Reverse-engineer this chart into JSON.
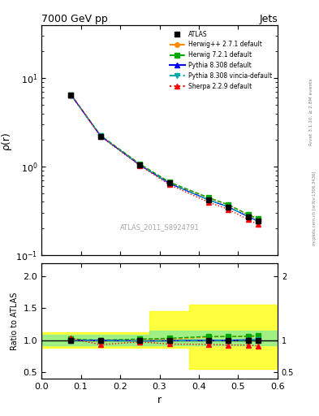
{
  "title": "7000 GeV pp",
  "title_right": "Jets",
  "ylabel_main": "ρ(r)",
  "ylabel_ratio": "Ratio to ATLAS",
  "xlabel": "r",
  "watermark": "ATLAS_2011_S8924791",
  "rivet_label": "Rivet 3.1.10, ≥ 2.8M events",
  "arxiv_label": "mcplots.cern.ch [arXiv:1306.3436]",
  "r_values": [
    0.075,
    0.15,
    0.25,
    0.325,
    0.425,
    0.475,
    0.525,
    0.55
  ],
  "atlas_y": [
    6.5,
    2.2,
    1.05,
    0.65,
    0.42,
    0.35,
    0.27,
    0.24
  ],
  "atlas_yerr": [
    0.1,
    0.05,
    0.03,
    0.02,
    0.02,
    0.015,
    0.012,
    0.01
  ],
  "herwig271_y": [
    6.5,
    2.25,
    1.06,
    0.66,
    0.44,
    0.37,
    0.285,
    0.255
  ],
  "herwig721_y": [
    6.5,
    2.25,
    1.07,
    0.67,
    0.445,
    0.37,
    0.287,
    0.257
  ],
  "pythia8308_y": [
    6.5,
    2.22,
    1.04,
    0.645,
    0.42,
    0.35,
    0.272,
    0.242
  ],
  "pythia_vincia_y": [
    6.5,
    2.22,
    1.04,
    0.645,
    0.42,
    0.35,
    0.272,
    0.242
  ],
  "sherpa229_y": [
    6.5,
    2.2,
    1.03,
    0.625,
    0.395,
    0.328,
    0.252,
    0.222
  ],
  "herwig271_ratio": [
    1.02,
    0.98,
    1.01,
    1.015,
    1.05,
    1.06,
    1.055,
    1.06
  ],
  "herwig721_ratio": [
    1.02,
    1.0,
    1.02,
    1.03,
    1.06,
    1.057,
    1.063,
    1.07
  ],
  "pythia8308_ratio": [
    1.0,
    1.0,
    0.99,
    0.992,
    1.0,
    1.0,
    1.007,
    1.007
  ],
  "pythia_vincia_ratio": [
    1.0,
    0.99,
    0.99,
    0.99,
    0.995,
    0.995,
    1.0,
    1.005
  ],
  "sherpa229_ratio": [
    1.03,
    0.93,
    0.975,
    0.94,
    0.935,
    0.925,
    0.925,
    0.91
  ],
  "band_edges": [
    0.0,
    0.125,
    0.2,
    0.275,
    0.375,
    0.45,
    0.5,
    0.55,
    0.6
  ],
  "yel_lo": [
    0.88,
    0.88,
    0.88,
    0.88,
    0.55,
    0.55,
    0.55,
    0.55
  ],
  "yel_hi": [
    1.12,
    1.12,
    1.12,
    1.45,
    1.55,
    1.55,
    1.55,
    1.55
  ],
  "grn_lo": [
    0.92,
    0.92,
    0.92,
    0.92,
    0.92,
    0.92,
    0.92,
    0.92
  ],
  "grn_hi": [
    1.08,
    1.08,
    1.08,
    1.15,
    1.15,
    1.15,
    1.15,
    1.15
  ],
  "color_atlas": "#000000",
  "color_herwig271": "#ff8800",
  "color_herwig721": "#00aa00",
  "color_pythia8308": "#0000ff",
  "color_pythia_vincia": "#00aaaa",
  "color_sherpa229": "#ff0000",
  "ylim_main": [
    0.1,
    40
  ],
  "ylim_ratio": [
    0.4,
    2.2
  ],
  "xlim": [
    0.0,
    0.6
  ]
}
